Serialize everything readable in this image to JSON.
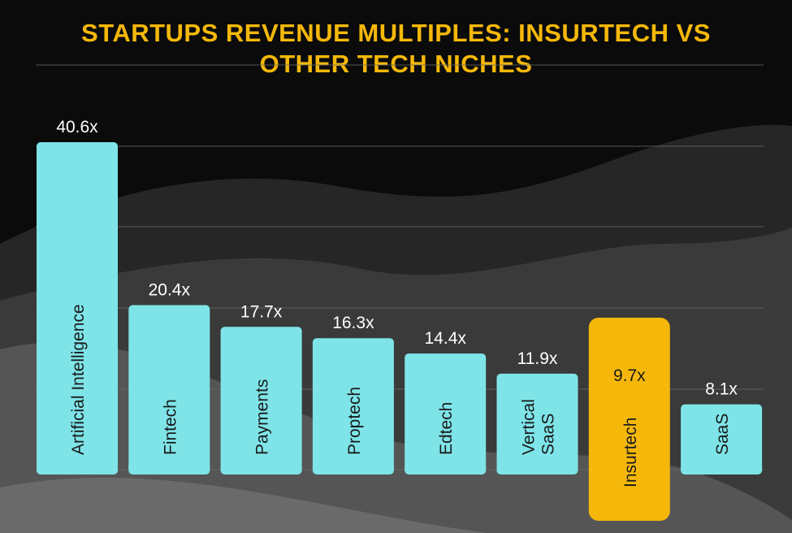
{
  "title": {
    "line1": "STARTUPS REVENUE MULTIPLES: INSURTECH VS",
    "line2": "OTHER TECH NICHES"
  },
  "colors": {
    "bar": "#7ee4e8",
    "highlight": "#f5b80a",
    "title": "#f5b80a",
    "value_text": "#ffffff",
    "label_text": "#1a1a1a",
    "grid": "#6a6a6a"
  },
  "chart_data": {
    "type": "bar",
    "title": "STARTUPS REVENUE MULTIPLES: INSURTECH VS OTHER TECH NICHES",
    "categories": [
      "Artificial Intelligence",
      "Fintech",
      "Payments",
      "Proptech",
      "Edtech",
      "Vertical SaaS",
      "Insurtech",
      "SaaS"
    ],
    "values": [
      40.6,
      20.4,
      17.7,
      16.3,
      14.4,
      11.9,
      9.7,
      8.1
    ],
    "value_labels": [
      "40.6x",
      "20.4x",
      "17.7x",
      "16.3x",
      "14.4x",
      "11.9x",
      "9.7x",
      "8.1x"
    ],
    "label_lines": [
      [
        "Artificial Intelligence"
      ],
      [
        "Fintech"
      ],
      [
        "Payments"
      ],
      [
        "Proptech"
      ],
      [
        "Edtech"
      ],
      [
        "Vertical",
        "SaaS"
      ],
      [
        "Insurtech"
      ],
      [
        "SaaS"
      ]
    ],
    "highlight_category": "Insurtech",
    "xlabel": "",
    "ylabel": "",
    "ylim": [
      0,
      50
    ],
    "grid": true
  }
}
